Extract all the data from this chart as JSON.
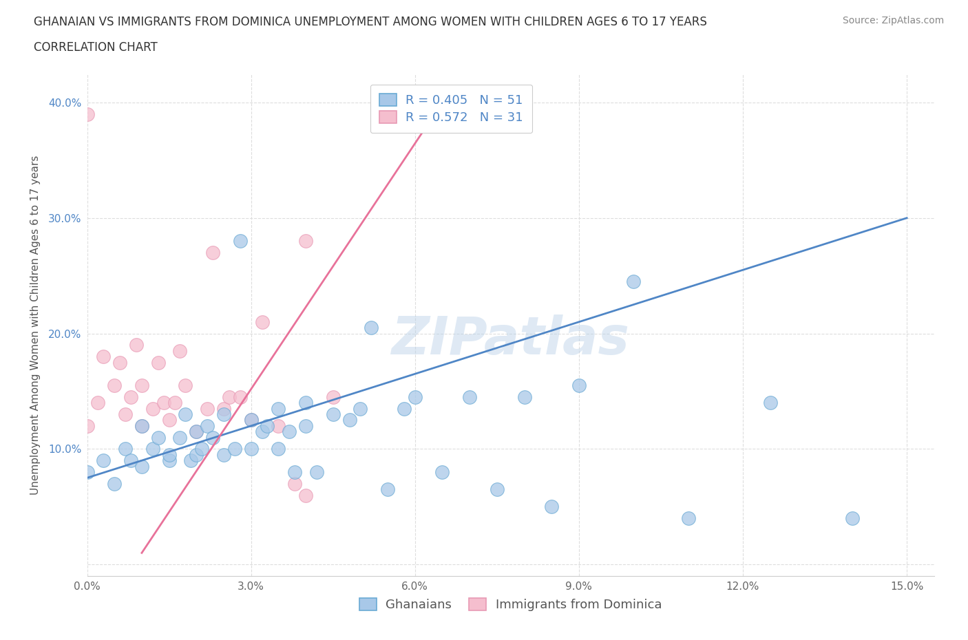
{
  "title_line1": "GHANAIAN VS IMMIGRANTS FROM DOMINICA UNEMPLOYMENT AMONG WOMEN WITH CHILDREN AGES 6 TO 17 YEARS",
  "title_line2": "CORRELATION CHART",
  "source_text": "Source: ZipAtlas.com",
  "ylabel": "Unemployment Among Women with Children Ages 6 to 17 years",
  "xlim": [
    0.0,
    0.155
  ],
  "ylim": [
    -0.01,
    0.425
  ],
  "xticks": [
    0.0,
    0.03,
    0.06,
    0.09,
    0.12,
    0.15
  ],
  "yticks": [
    0.0,
    0.1,
    0.2,
    0.3,
    0.4
  ],
  "xtick_labels": [
    "0.0%",
    "3.0%",
    "6.0%",
    "9.0%",
    "12.0%",
    "15.0%"
  ],
  "ytick_labels": [
    "",
    "10.0%",
    "20.0%",
    "30.0%",
    "40.0%"
  ],
  "blue_R": 0.405,
  "blue_N": 51,
  "pink_R": 0.572,
  "pink_N": 31,
  "blue_color": "#a8c8e8",
  "blue_line_color": "#4f86c6",
  "blue_edge_color": "#6aaad4",
  "pink_color": "#f5bece",
  "pink_line_color": "#e8729a",
  "pink_edge_color": "#e899b4",
  "watermark": "ZIPatlas",
  "legend_label_blue": "Ghanaians",
  "legend_label_pink": "Immigrants from Dominica",
  "blue_scatter_x": [
    0.0,
    0.003,
    0.005,
    0.007,
    0.008,
    0.01,
    0.01,
    0.012,
    0.013,
    0.015,
    0.015,
    0.017,
    0.018,
    0.019,
    0.02,
    0.02,
    0.021,
    0.022,
    0.023,
    0.025,
    0.025,
    0.027,
    0.028,
    0.03,
    0.03,
    0.032,
    0.033,
    0.035,
    0.035,
    0.037,
    0.038,
    0.04,
    0.04,
    0.042,
    0.045,
    0.048,
    0.05,
    0.052,
    0.055,
    0.058,
    0.06,
    0.065,
    0.07,
    0.075,
    0.08,
    0.085,
    0.09,
    0.1,
    0.11,
    0.125,
    0.14
  ],
  "blue_scatter_y": [
    0.08,
    0.09,
    0.07,
    0.1,
    0.09,
    0.085,
    0.12,
    0.1,
    0.11,
    0.09,
    0.095,
    0.11,
    0.13,
    0.09,
    0.095,
    0.115,
    0.1,
    0.12,
    0.11,
    0.13,
    0.095,
    0.1,
    0.28,
    0.1,
    0.125,
    0.115,
    0.12,
    0.135,
    0.1,
    0.115,
    0.08,
    0.12,
    0.14,
    0.08,
    0.13,
    0.125,
    0.135,
    0.205,
    0.065,
    0.135,
    0.145,
    0.08,
    0.145,
    0.065,
    0.145,
    0.05,
    0.155,
    0.245,
    0.04,
    0.14,
    0.04
  ],
  "pink_scatter_x": [
    0.0,
    0.0,
    0.002,
    0.003,
    0.005,
    0.006,
    0.007,
    0.008,
    0.009,
    0.01,
    0.01,
    0.012,
    0.013,
    0.014,
    0.015,
    0.016,
    0.017,
    0.018,
    0.02,
    0.022,
    0.023,
    0.025,
    0.026,
    0.028,
    0.03,
    0.032,
    0.035,
    0.038,
    0.04,
    0.04,
    0.045
  ],
  "pink_scatter_y": [
    0.39,
    0.12,
    0.14,
    0.18,
    0.155,
    0.175,
    0.13,
    0.145,
    0.19,
    0.12,
    0.155,
    0.135,
    0.175,
    0.14,
    0.125,
    0.14,
    0.185,
    0.155,
    0.115,
    0.135,
    0.27,
    0.135,
    0.145,
    0.145,
    0.125,
    0.21,
    0.12,
    0.07,
    0.06,
    0.28,
    0.145
  ],
  "blue_line_x": [
    0.0,
    0.15
  ],
  "blue_line_y": [
    0.075,
    0.3
  ],
  "pink_line_x": [
    0.015,
    0.065
  ],
  "pink_line_y": [
    0.385,
    0.01
  ],
  "title_fontsize": 12,
  "subtitle_fontsize": 12,
  "axis_label_fontsize": 11,
  "tick_fontsize": 11,
  "legend_fontsize": 12,
  "source_fontsize": 10,
  "background_color": "#ffffff",
  "grid_color": "#dddddd"
}
